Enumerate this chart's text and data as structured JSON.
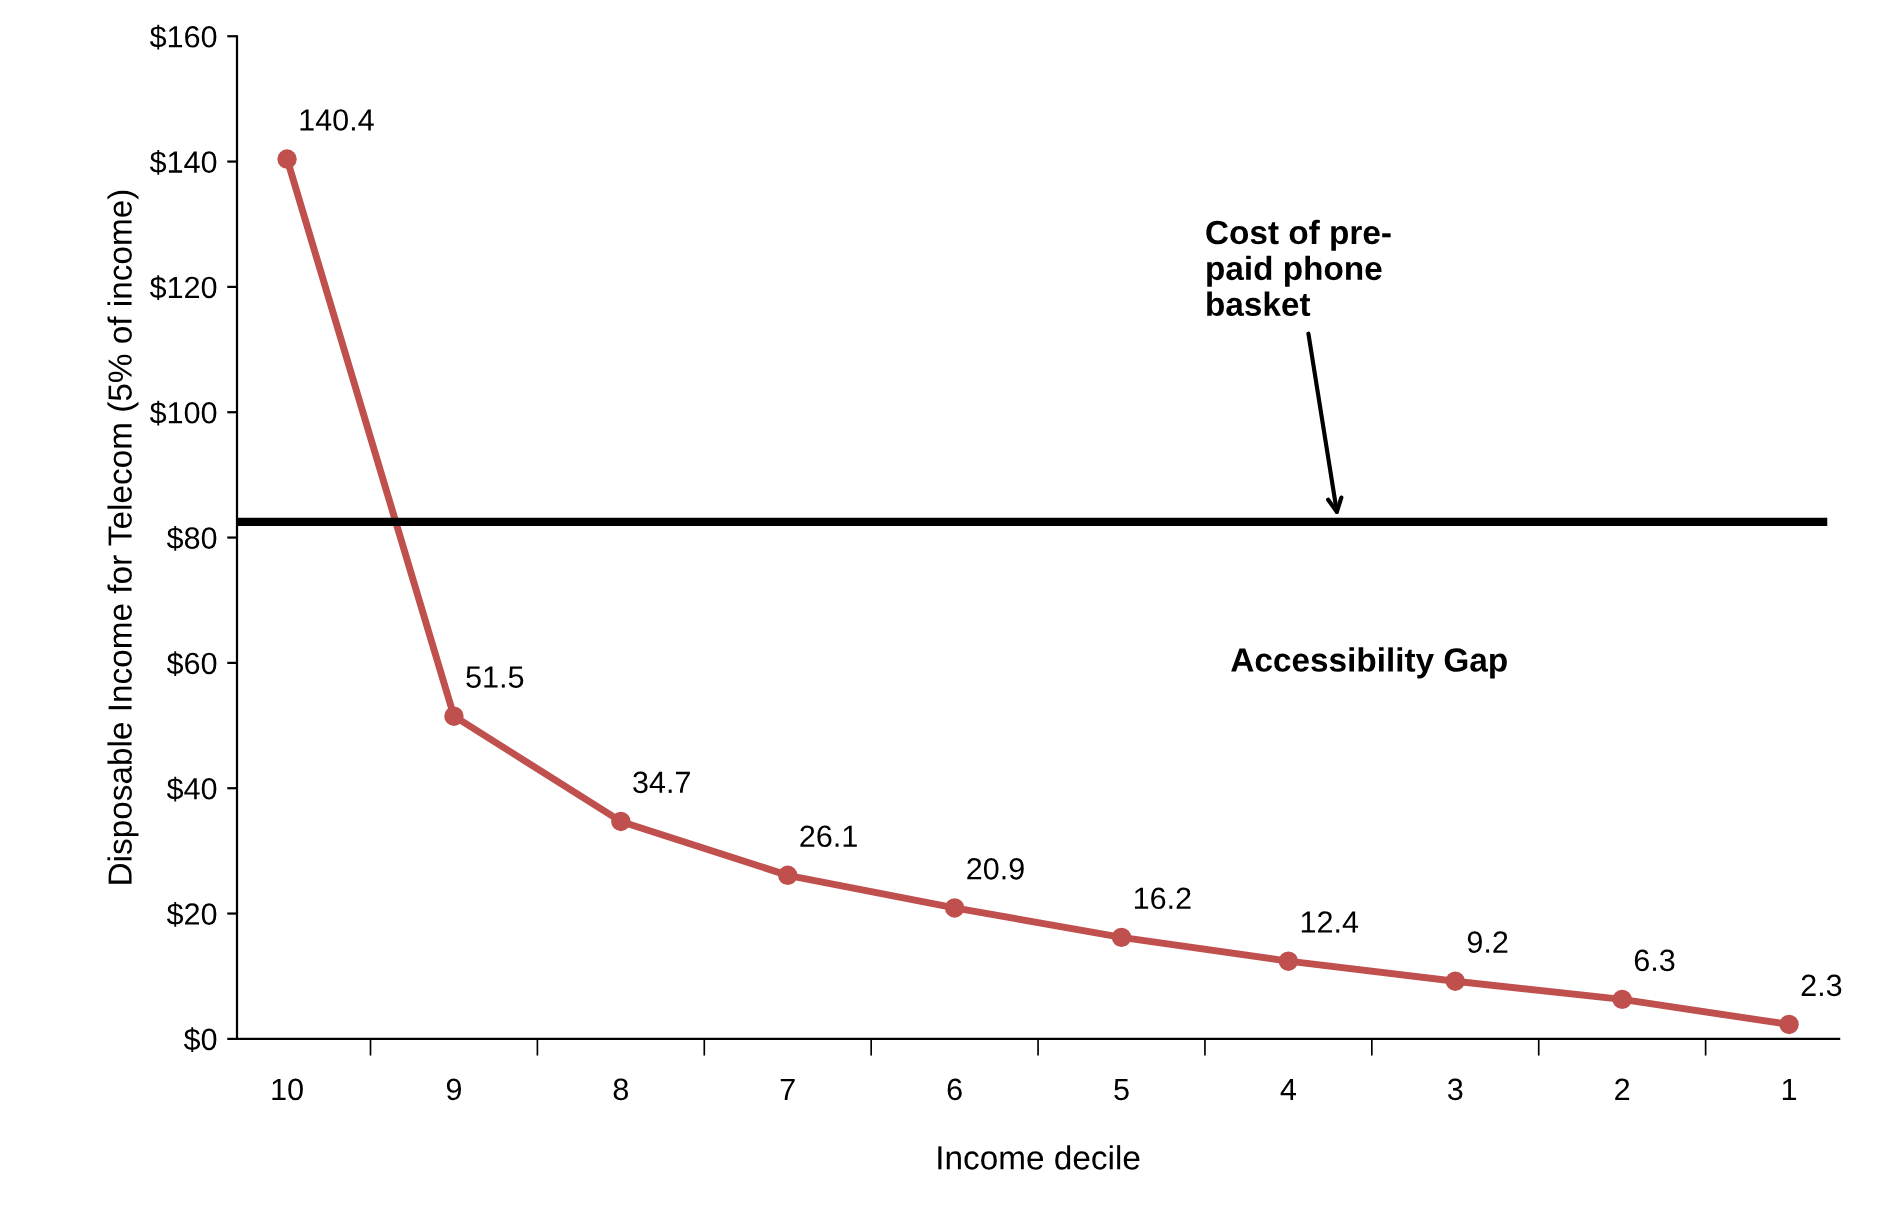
{
  "chart_data": {
    "type": "line",
    "xlabel": "Income decile",
    "ylabel": "Disposable Income for Telecom (5% of income)",
    "categories": [
      "10",
      "9",
      "8",
      "7",
      "6",
      "5",
      "4",
      "3",
      "2",
      "1"
    ],
    "series": [
      {
        "color": "#c0504d",
        "values": [
          140.4,
          51.5,
          34.7,
          26.1,
          20.9,
          16.2,
          12.4,
          9.2,
          6.3,
          2.3
        ]
      }
    ],
    "data_labels": true,
    "marker": "circle",
    "line_style": "solid",
    "grid": false,
    "legend": false,
    "ylim": [
      0,
      160
    ],
    "yticks": [
      {
        "value": 0,
        "label": "$0"
      },
      {
        "value": 20,
        "label": "$20"
      },
      {
        "value": 40,
        "label": "$40"
      },
      {
        "value": 60,
        "label": "$60"
      },
      {
        "value": 80,
        "label": "$80"
      },
      {
        "value": 100,
        "label": "$100"
      },
      {
        "value": 120,
        "label": "$120"
      },
      {
        "value": 140,
        "label": "$140"
      },
      {
        "value": 160,
        "label": "$160"
      }
    ],
    "ref_lines": [
      {
        "axis": "y",
        "value": 82.5,
        "label": "Cost of pre-\npaid phone\nbasket",
        "color": "#000000",
        "line_style": "solid"
      }
    ],
    "annotations": [
      "Accessibility Gap"
    ]
  }
}
